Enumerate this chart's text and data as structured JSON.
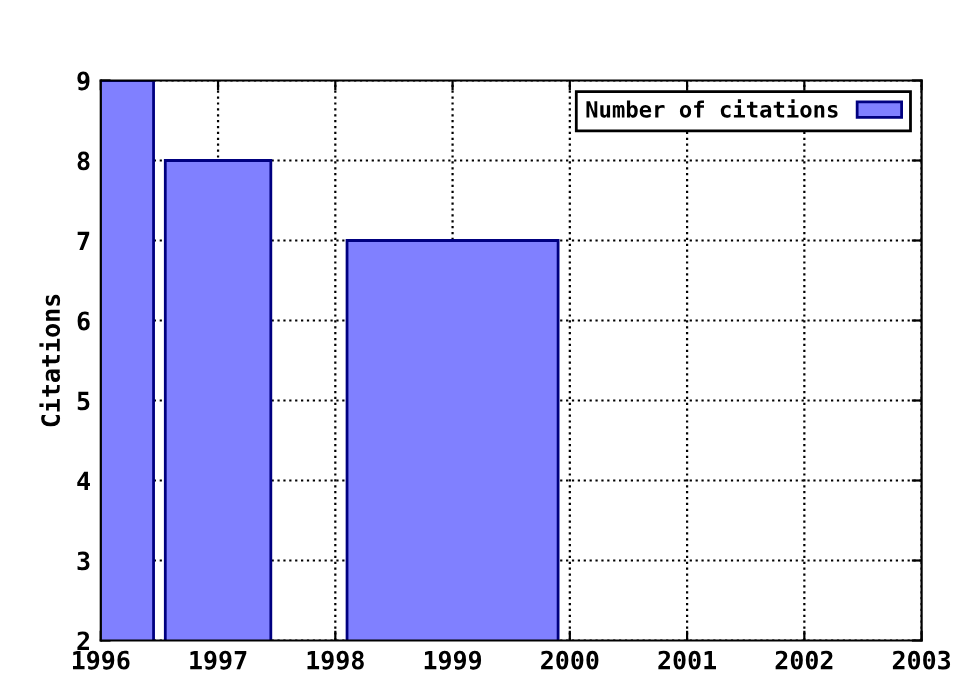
{
  "chart_data": {
    "type": "bar",
    "ylabel": "Citations",
    "x": [
      1996,
      1997,
      1999
    ],
    "series": [
      {
        "name": "Number of citations",
        "color": "#8080ff",
        "values": [
          9,
          8,
          7
        ]
      }
    ],
    "xlim": [
      1996,
      2003
    ],
    "xticks": [
      1996,
      1997,
      1998,
      1999,
      2000,
      2001,
      2002,
      2003
    ],
    "ylim": [
      2,
      9
    ],
    "yticks": [
      2,
      3,
      4,
      5,
      6,
      7,
      8,
      9
    ],
    "grid": true,
    "legend": "top right"
  }
}
